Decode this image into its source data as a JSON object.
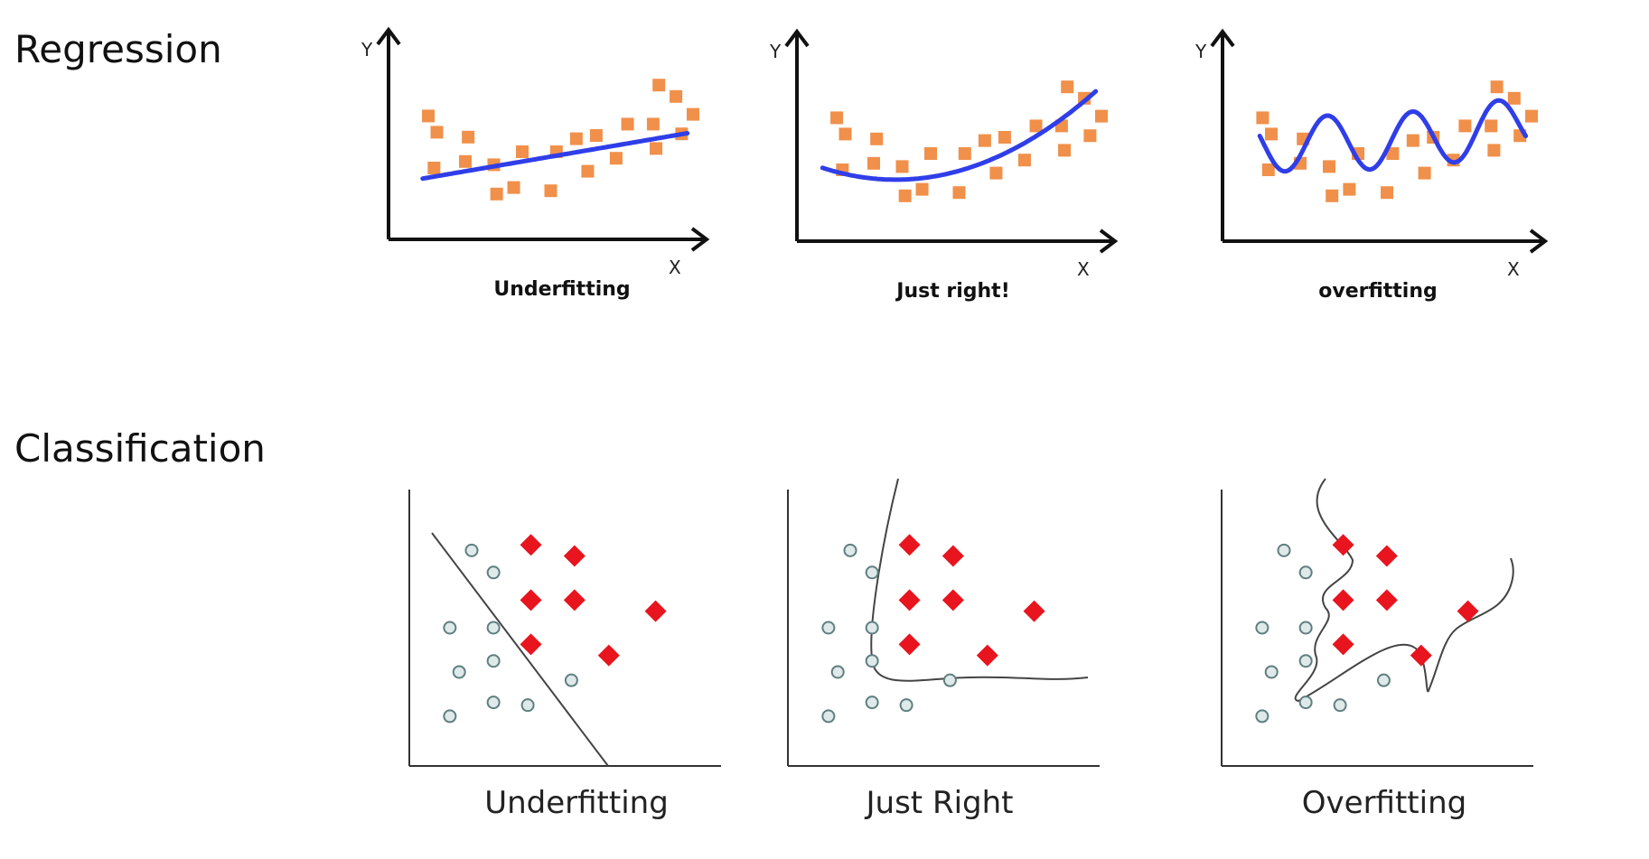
{
  "sections": {
    "regression": "Regression",
    "classification": "Classification"
  },
  "axis_letters": {
    "x": "X",
    "y": "Y"
  },
  "colors": {
    "reg_points": "#f0904a",
    "reg_curve": "#2f3ee8",
    "cls_diamond": "#e8141e",
    "cls_circle_fill": "#dfe9e9",
    "cls_circle_stroke": "#5f7f7f",
    "boundary": "#444444",
    "axis": "#111111"
  },
  "regression_panels": [
    {
      "caption": "Underfitting",
      "fit": "linear"
    },
    {
      "caption": "Just right!",
      "fit": "quadratic"
    },
    {
      "caption": "overfitting",
      "fit": "wiggly"
    }
  ],
  "regression_points": [
    [
      0.07,
      0.62
    ],
    [
      0.1,
      0.52
    ],
    [
      0.09,
      0.3
    ],
    [
      0.21,
      0.49
    ],
    [
      0.2,
      0.34
    ],
    [
      0.3,
      0.32
    ],
    [
      0.31,
      0.14
    ],
    [
      0.37,
      0.18
    ],
    [
      0.4,
      0.4
    ],
    [
      0.5,
      0.16
    ],
    [
      0.52,
      0.4
    ],
    [
      0.59,
      0.48
    ],
    [
      0.63,
      0.28
    ],
    [
      0.66,
      0.5
    ],
    [
      0.73,
      0.36
    ],
    [
      0.77,
      0.57
    ],
    [
      0.86,
      0.57
    ],
    [
      0.87,
      0.42
    ],
    [
      0.88,
      0.81
    ],
    [
      0.94,
      0.74
    ],
    [
      0.96,
      0.51
    ],
    [
      1.0,
      0.63
    ]
  ],
  "classification_panels": [
    {
      "caption": "Underfitting",
      "boundary": "linear"
    },
    {
      "caption": "Just Right",
      "boundary": "smooth"
    },
    {
      "caption": "Overfitting",
      "boundary": "complex"
    }
  ],
  "classification_points": {
    "circles": [
      [
        0.2,
        0.78
      ],
      [
        0.27,
        0.7
      ],
      [
        0.13,
        0.5
      ],
      [
        0.27,
        0.5
      ],
      [
        0.27,
        0.38
      ],
      [
        0.16,
        0.34
      ],
      [
        0.38,
        0.22
      ],
      [
        0.27,
        0.23
      ],
      [
        0.13,
        0.18
      ],
      [
        0.52,
        0.31
      ]
    ],
    "diamonds": [
      [
        0.39,
        0.8
      ],
      [
        0.53,
        0.76
      ],
      [
        0.39,
        0.6
      ],
      [
        0.53,
        0.6
      ],
      [
        0.39,
        0.44
      ],
      [
        0.79,
        0.56
      ],
      [
        0.64,
        0.4
      ]
    ]
  }
}
